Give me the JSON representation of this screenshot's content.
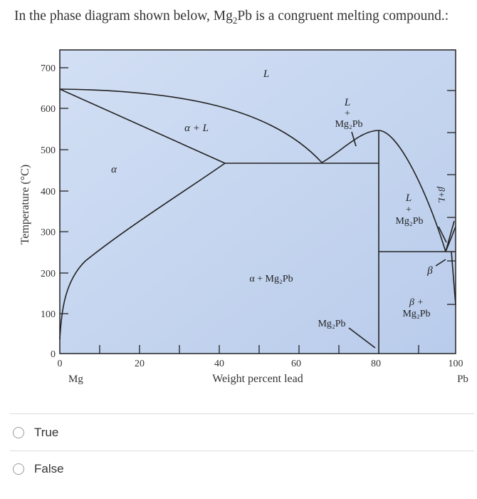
{
  "question": {
    "text_before": "In the phase diagram shown below, Mg",
    "sub": "2",
    "text_after": "Pb is a congruent melting compound.:"
  },
  "diagram": {
    "y_axis_label": "Temperature (°C)",
    "x_axis_label": "Weight percent lead",
    "left_element": "Mg",
    "right_element": "Pb",
    "y_ticks": [
      "700",
      "600",
      "500",
      "400",
      "300",
      "200",
      "100",
      "0"
    ],
    "x_ticks": [
      "0",
      "20",
      "40",
      "60",
      "80",
      "100"
    ],
    "regions": {
      "liquid": "L",
      "alpha_liquid": "α + L",
      "alpha": "α",
      "liquid_mg2pb_left_top": "L",
      "liquid_mg2pb_left_plus": "+",
      "liquid_mg2pb_left_bottom": "Mg₂Pb",
      "alpha_mg2pb": "α + Mg₂Pb",
      "liquid_mg2pb_right_top": "L",
      "liquid_mg2pb_right_plus": "+",
      "liquid_mg2pb_right_bottom": "Mg₂Pb",
      "beta_liquid": "β+L",
      "beta": "β",
      "beta_mg2pb_top": "β +",
      "beta_mg2pb_bottom": "Mg₂Pb",
      "compound_line": "Mg₂Pb"
    },
    "colors": {
      "fill": "#c2d3ef",
      "line": "#222222"
    }
  },
  "options": [
    {
      "label": "True"
    },
    {
      "label": "False"
    }
  ]
}
